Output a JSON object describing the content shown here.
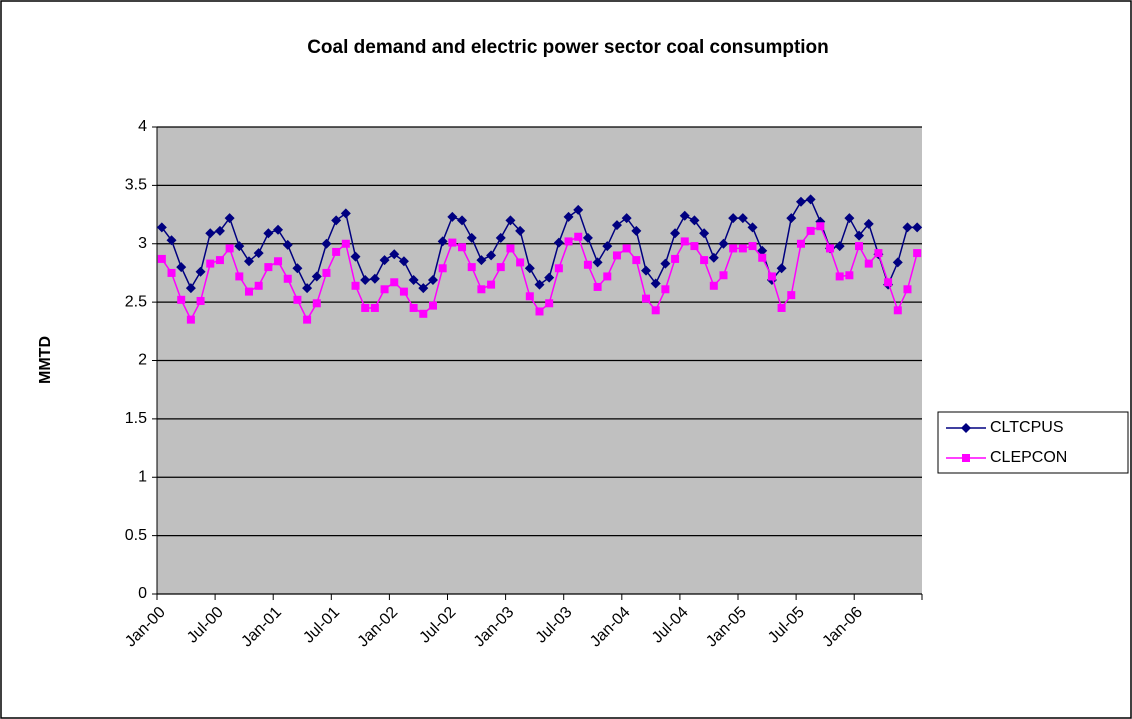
{
  "chart_data": {
    "type": "line",
    "title": "Coal demand and electric power sector coal consumption",
    "y_label": "MMTD",
    "categories": [
      "Jan-00",
      null,
      null,
      null,
      null,
      null,
      "Jul-00",
      null,
      null,
      null,
      null,
      null,
      "Jan-01",
      null,
      null,
      null,
      null,
      null,
      "Jul-01",
      null,
      null,
      null,
      null,
      null,
      "Jan-02",
      null,
      null,
      null,
      null,
      null,
      "Jul-02",
      null,
      null,
      null,
      null,
      null,
      "Jan-03",
      null,
      null,
      null,
      null,
      null,
      "Jul-03",
      null,
      null,
      null,
      null,
      null,
      "Jan-04",
      null,
      null,
      null,
      null,
      null,
      "Jul-04",
      null,
      null,
      null,
      null,
      null,
      "Jan-05",
      null,
      null,
      null,
      null,
      null,
      "Jul-05",
      null,
      null,
      null,
      null,
      null,
      "Jan-06",
      null,
      null,
      null,
      null,
      null,
      null
    ],
    "series": [
      {
        "name": "CLTCPUS",
        "color": "#000080",
        "marker": "diamond",
        "values": [
          3.14,
          3.03,
          2.8,
          2.62,
          2.76,
          3.09,
          3.11,
          3.22,
          2.98,
          2.85,
          2.92,
          3.09,
          3.12,
          2.99,
          2.79,
          2.62,
          2.72,
          3.0,
          3.2,
          3.26,
          2.89,
          2.69,
          2.7,
          2.86,
          2.91,
          2.85,
          2.69,
          2.62,
          2.69,
          3.02,
          3.23,
          3.2,
          3.05,
          2.86,
          2.9,
          3.05,
          3.2,
          3.11,
          2.79,
          2.65,
          2.71,
          3.01,
          3.23,
          3.29,
          3.05,
          2.84,
          2.98,
          3.16,
          3.22,
          3.11,
          2.77,
          2.66,
          2.83,
          3.09,
          3.24,
          3.2,
          3.09,
          2.88,
          3.0,
          3.22,
          3.22,
          3.14,
          2.94,
          2.69,
          2.79,
          3.22,
          3.36,
          3.38,
          3.19,
          2.96,
          2.98,
          3.22,
          3.07,
          3.17,
          2.91,
          2.65,
          2.84,
          3.14,
          3.14
        ]
      },
      {
        "name": "CLEPCON",
        "color": "#ff00ff",
        "marker": "square",
        "values": [
          2.87,
          2.75,
          2.52,
          2.35,
          2.51,
          2.83,
          2.86,
          2.96,
          2.72,
          2.59,
          2.64,
          2.8,
          2.85,
          2.7,
          2.52,
          2.35,
          2.49,
          2.75,
          2.93,
          3.0,
          2.64,
          2.45,
          2.45,
          2.61,
          2.67,
          2.59,
          2.45,
          2.4,
          2.47,
          2.79,
          3.01,
          2.97,
          2.8,
          2.61,
          2.65,
          2.8,
          2.96,
          2.84,
          2.55,
          2.42,
          2.49,
          2.79,
          3.02,
          3.06,
          2.82,
          2.63,
          2.72,
          2.9,
          2.96,
          2.86,
          2.53,
          2.43,
          2.61,
          2.87,
          3.02,
          2.98,
          2.86,
          2.64,
          2.73,
          2.96,
          2.96,
          2.98,
          2.88,
          2.72,
          2.45,
          2.56,
          3.0,
          3.11,
          3.15,
          2.96,
          2.72,
          2.73,
          2.98,
          2.83,
          2.92,
          2.67,
          2.43,
          2.61,
          2.92
        ]
      }
    ],
    "ylim": [
      0,
      4
    ],
    "yticks": [
      0,
      0.5,
      1,
      1.5,
      2,
      2.5,
      3,
      3.5,
      4
    ],
    "grid": true,
    "legend": "right",
    "plot_background": "#c0c0c0"
  }
}
